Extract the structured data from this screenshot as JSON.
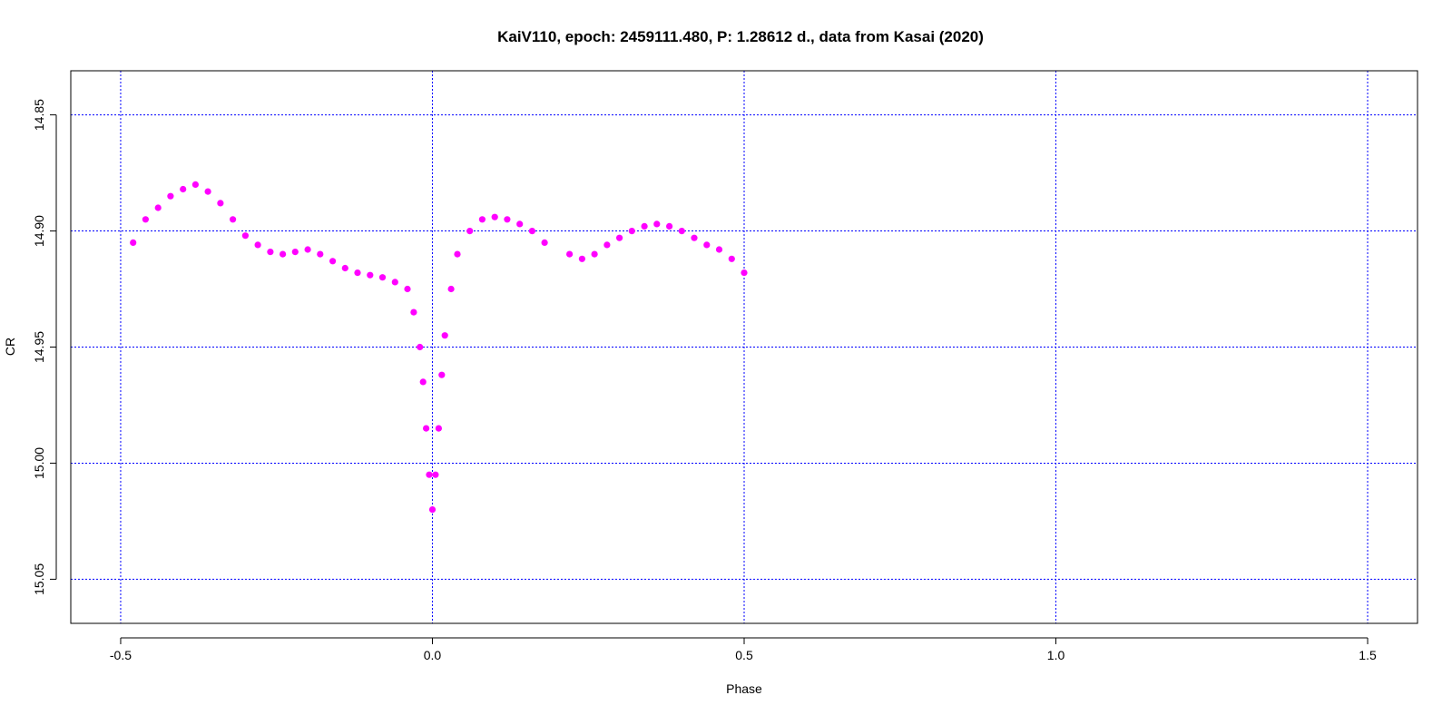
{
  "chart_data": {
    "type": "scatter",
    "title": "KaiV110, epoch: 2459111.480, P: 1.28612 d., data from Kasai (2020)",
    "xlabel": "Phase",
    "ylabel": "CR",
    "xlim": [
      -0.58,
      1.58
    ],
    "ylim": [
      14.831,
      15.069
    ],
    "y_reversed": true,
    "x_ticks": [
      -0.5,
      0.0,
      0.5,
      1.0,
      1.5
    ],
    "x_tick_labels": [
      "-0.5",
      "0.0",
      "0.5",
      "1.0",
      "1.5"
    ],
    "y_ticks": [
      14.85,
      14.9,
      14.95,
      15.0,
      15.05
    ],
    "y_tick_labels": [
      "14.85",
      "14.90",
      "14.95",
      "15.00",
      "15.05"
    ],
    "grid": true,
    "grid_color": "#0000ff",
    "point_color": "#ff00ff",
    "series": [
      {
        "x": [
          -0.48,
          -0.46,
          -0.44,
          -0.42,
          -0.4,
          -0.38,
          -0.36,
          -0.34,
          -0.32,
          -0.3,
          -0.28,
          -0.26,
          -0.24,
          -0.22,
          -0.2,
          -0.18,
          -0.16,
          -0.14,
          -0.12,
          -0.1,
          -0.08,
          -0.06,
          -0.04,
          -0.03,
          -0.02,
          -0.015,
          -0.01,
          -0.005,
          0.0,
          0.005,
          0.01,
          0.015,
          0.02,
          0.03,
          0.04,
          0.06,
          0.08,
          0.1,
          0.12,
          0.14,
          0.16,
          0.18,
          0.22,
          0.24,
          0.26,
          0.28,
          0.3,
          0.32,
          0.34,
          0.36,
          0.38,
          0.4,
          0.42,
          0.44,
          0.46,
          0.48,
          0.5
        ],
        "y": [
          14.905,
          14.895,
          14.89,
          14.885,
          14.882,
          14.88,
          14.883,
          14.888,
          14.895,
          14.902,
          14.906,
          14.909,
          14.91,
          14.909,
          14.908,
          14.91,
          14.913,
          14.916,
          14.918,
          14.919,
          14.92,
          14.922,
          14.925,
          14.935,
          14.95,
          14.965,
          14.985,
          15.005,
          15.02,
          15.005,
          14.985,
          14.962,
          14.945,
          14.925,
          14.91,
          14.9,
          14.895,
          14.894,
          14.895,
          14.897,
          14.9,
          14.905,
          14.91,
          14.912,
          14.91,
          14.906,
          14.903,
          14.9,
          14.898,
          14.897,
          14.898,
          14.9,
          14.903,
          14.906,
          14.908,
          14.912,
          14.918
        ]
      }
    ]
  }
}
